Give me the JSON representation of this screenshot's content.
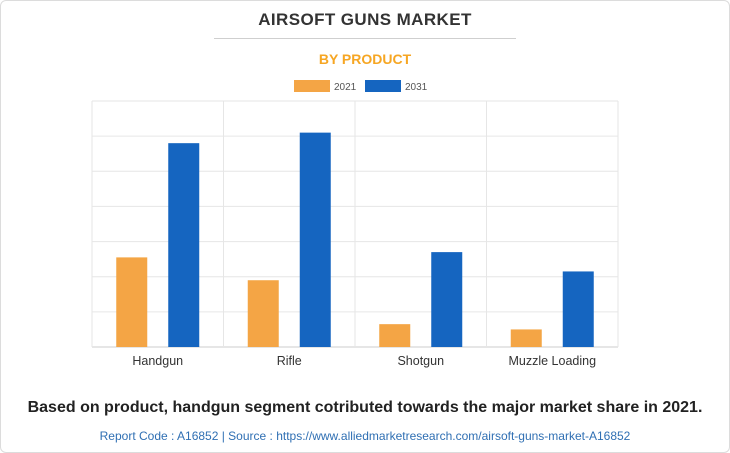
{
  "header": {
    "title": "AIRSOFT GUNS MARKET",
    "subtitle": "BY PRODUCT"
  },
  "footer": {
    "caption": "Based on product, handgun segment cotributed towards the major market share in 2021.",
    "source": "Report Code : A16852  |  Source : https://www.alliedmarketresearch.com/airsoft-guns-market-A16852"
  },
  "colors": {
    "series_2021": "#f4a545",
    "series_2031": "#1565c0",
    "grid": "#e6e6e6",
    "subtitle": "#f6a623"
  },
  "chart_data": {
    "type": "bar",
    "title": "AIRSOFT GUNS MARKET",
    "subtitle": "BY PRODUCT",
    "categories": [
      "Handgun",
      "Rifle",
      "Shotgun",
      "Muzzle Loading"
    ],
    "series": [
      {
        "name": "2021",
        "values": [
          2.55,
          1.9,
          0.65,
          0.5
        ]
      },
      {
        "name": "2031",
        "values": [
          5.8,
          6.1,
          2.7,
          2.15
        ]
      }
    ],
    "xlabel": "",
    "ylabel": "",
    "ylim": [
      0,
      7
    ],
    "grid": true,
    "legend_position": "top-center"
  }
}
